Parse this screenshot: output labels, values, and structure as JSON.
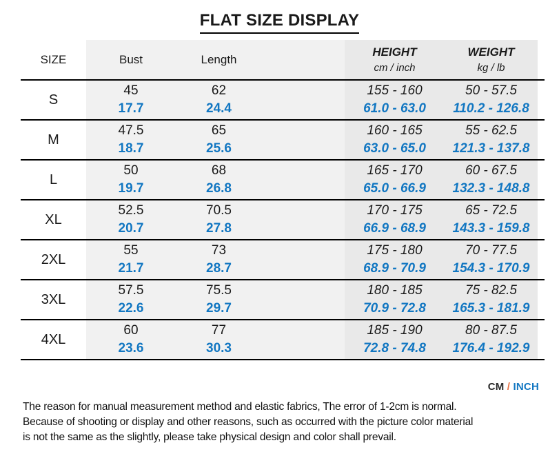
{
  "title": "FLAT SIZE DISPLAY",
  "table": {
    "headers": {
      "size": "SIZE",
      "bust": "Bust",
      "length": "Length",
      "height_label": "HEIGHT",
      "height_unit": "cm / inch",
      "weight_label": "WEIGHT",
      "weight_unit": "kg / lb"
    },
    "rows": [
      {
        "size": "S",
        "bust_cm": "45",
        "bust_in": "17.7",
        "length_cm": "62",
        "length_in": "24.4",
        "height_cm": "155 - 160",
        "height_in": "61.0 - 63.0",
        "weight_kg": "50 - 57.5",
        "weight_lb": "110.2 - 126.8"
      },
      {
        "size": "M",
        "bust_cm": "47.5",
        "bust_in": "18.7",
        "length_cm": "65",
        "length_in": "25.6",
        "height_cm": "160 - 165",
        "height_in": "63.0 - 65.0",
        "weight_kg": "55 - 62.5",
        "weight_lb": "121.3 - 137.8"
      },
      {
        "size": "L",
        "bust_cm": "50",
        "bust_in": "19.7",
        "length_cm": "68",
        "length_in": "26.8",
        "height_cm": "165 - 170",
        "height_in": "65.0 - 66.9",
        "weight_kg": "60 - 67.5",
        "weight_lb": "132.3 - 148.8"
      },
      {
        "size": "XL",
        "bust_cm": "52.5",
        "bust_in": "20.7",
        "length_cm": "70.5",
        "length_in": "27.8",
        "height_cm": "170 - 175",
        "height_in": "66.9 - 68.9",
        "weight_kg": "65 - 72.5",
        "weight_lb": "143.3 - 159.8"
      },
      {
        "size": "2XL",
        "bust_cm": "55",
        "bust_in": "21.7",
        "length_cm": "73",
        "length_in": "28.7",
        "height_cm": "175 - 180",
        "height_in": "68.9 - 70.9",
        "weight_kg": "70 - 77.5",
        "weight_lb": "154.3 - 170.9"
      },
      {
        "size": "3XL",
        "bust_cm": "57.5",
        "bust_in": "22.6",
        "length_cm": "75.5",
        "length_in": "29.7",
        "height_cm": "180 - 185",
        "height_in": "70.9 - 72.8",
        "weight_kg": "75 - 82.5",
        "weight_lb": "165.3 - 181.9"
      },
      {
        "size": "4XL",
        "bust_cm": "60",
        "bust_in": "23.6",
        "length_cm": "77",
        "length_in": "30.3",
        "height_cm": "185 - 190",
        "height_in": "72.8 - 74.8",
        "weight_kg": "80 - 87.5",
        "weight_lb": "176.4 - 192.9"
      }
    ]
  },
  "unit_legend": {
    "cm": "CM",
    "separator": " / ",
    "inch": "INCH"
  },
  "disclaimer": {
    "line1": "The reason for manual measurement method and elastic fabrics, The error of 1-2cm is normal.",
    "line2": "Because of shooting or display and other reasons, such as occurred with the picture color material",
    "line3": "is not the same as the slightly, please take physical design and color shall prevail."
  },
  "colors": {
    "accent_blue": "#1277c2",
    "separator_orange": "#e87245",
    "light_gray": "#f1f1f1",
    "mid_gray": "#e9e9e9",
    "line_black": "#000000"
  }
}
